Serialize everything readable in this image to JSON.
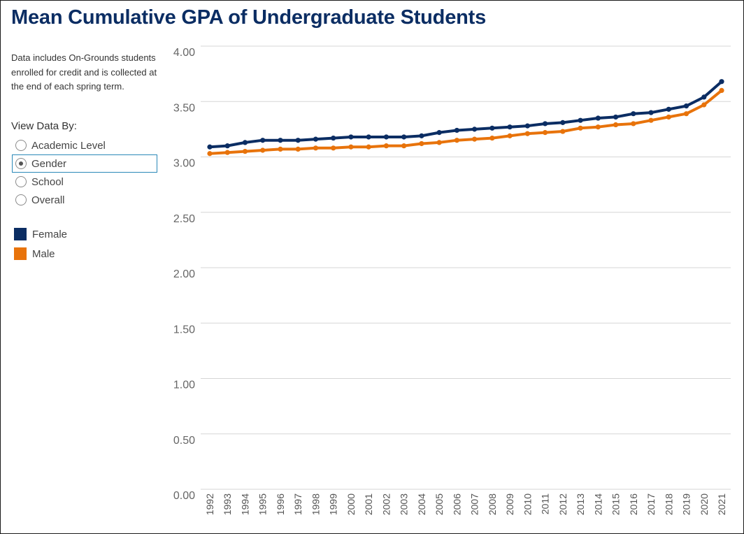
{
  "page": {
    "title": "Mean Cumulative GPA of Undergraduate Students",
    "note": "Data includes On-Grounds students enrolled for credit and is collected at the end of each spring term."
  },
  "view_selector": {
    "label": "View Data By:",
    "options": [
      "Academic Level",
      "Gender",
      "School",
      "Overall"
    ],
    "selected": "Gender"
  },
  "legend": {
    "items": [
      {
        "label": "Female",
        "color": "#0b2d63"
      },
      {
        "label": "Male",
        "color": "#e8730b"
      }
    ]
  },
  "chart_data": {
    "type": "line",
    "title": "Mean Cumulative GPA of Undergraduate Students",
    "xlabel": "",
    "ylabel": "",
    "ylim": [
      0,
      4
    ],
    "yticks": [
      "0.00",
      "0.50",
      "1.00",
      "1.50",
      "2.00",
      "2.50",
      "3.00",
      "3.50",
      "4.00"
    ],
    "grid": true,
    "legend_placement": "left",
    "x": [
      1992,
      1993,
      1994,
      1995,
      1996,
      1997,
      1998,
      1999,
      2000,
      2001,
      2002,
      2003,
      2004,
      2005,
      2006,
      2007,
      2008,
      2009,
      2010,
      2011,
      2012,
      2013,
      2014,
      2015,
      2016,
      2017,
      2018,
      2019,
      2020,
      2021
    ],
    "series": [
      {
        "name": "Female",
        "color": "#0b2d63",
        "values": [
          3.09,
          3.1,
          3.13,
          3.15,
          3.15,
          3.15,
          3.16,
          3.17,
          3.18,
          3.18,
          3.18,
          3.18,
          3.19,
          3.22,
          3.24,
          3.25,
          3.26,
          3.27,
          3.28,
          3.3,
          3.31,
          3.33,
          3.35,
          3.36,
          3.39,
          3.4,
          3.43,
          3.46,
          3.54,
          3.68
        ]
      },
      {
        "name": "Male",
        "color": "#e8730b",
        "values": [
          3.03,
          3.04,
          3.05,
          3.06,
          3.07,
          3.07,
          3.08,
          3.08,
          3.09,
          3.09,
          3.1,
          3.1,
          3.12,
          3.13,
          3.15,
          3.16,
          3.17,
          3.19,
          3.21,
          3.22,
          3.23,
          3.26,
          3.27,
          3.29,
          3.3,
          3.33,
          3.36,
          3.39,
          3.47,
          3.6
        ]
      }
    ]
  }
}
